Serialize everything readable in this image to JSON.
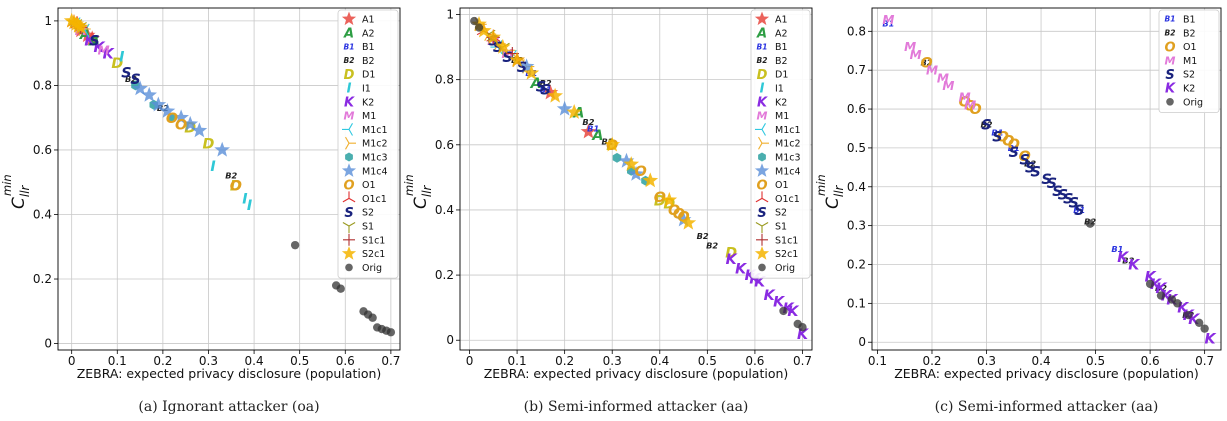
{
  "colors": {
    "A1": "#e8473e",
    "A2": "#2e9e44",
    "B1": "#2a33e0",
    "B2": "#222222",
    "D1": "#c9c020",
    "I1": "#2fc8d6",
    "K2": "#8a2be2",
    "M1": "#e27ad9",
    "M1c1": "#30c8e0",
    "M1c2": "#f0b030",
    "M1c3": "#2aa0a0",
    "M1c4": "#5a8fd8",
    "O1": "#e0a020",
    "O1c1": "#e03030",
    "S2": "#1a237e",
    "S1": "#9a9a20",
    "S1c1": "#b03030",
    "S2c1": "#f5b400",
    "Orig": "#555555"
  },
  "figures": [
    {
      "caption": "(a) Ignorant attacker (oa)",
      "xlabel": "ZEBRA: expected privacy disclosure (population)",
      "ylabel_main": "C",
      "ylabel_sub": "llr",
      "ylabel_sup": "min",
      "legend": [
        {
          "label": "A1",
          "icon": "star-icon"
        },
        {
          "label": "A2",
          "icon": "letter-a-icon"
        },
        {
          "label": "B1",
          "icon": "letter-b1-icon"
        },
        {
          "label": "B2",
          "icon": "letter-b2-icon"
        },
        {
          "label": "D1",
          "icon": "letter-d-icon"
        },
        {
          "label": "I1",
          "icon": "letter-i-icon"
        },
        {
          "label": "K2",
          "icon": "letter-k-icon"
        },
        {
          "label": "M1",
          "icon": "letter-m-icon"
        },
        {
          "label": "M1c1",
          "icon": "tri-left-icon"
        },
        {
          "label": "M1c2",
          "icon": "tri-right-icon"
        },
        {
          "label": "M1c3",
          "icon": "hexagon-icon"
        },
        {
          "label": "M1c4",
          "icon": "star-icon"
        },
        {
          "label": "O1",
          "icon": "letter-o-icon"
        },
        {
          "label": "O1c1",
          "icon": "tri-up-icon"
        },
        {
          "label": "S2",
          "icon": "letter-s-icon"
        },
        {
          "label": "S1",
          "icon": "tri-down-icon"
        },
        {
          "label": "S1c1",
          "icon": "plus-icon"
        },
        {
          "label": "S2c1",
          "icon": "star-icon"
        },
        {
          "label": "Orig",
          "icon": "dot-icon"
        }
      ]
    },
    {
      "caption": "(b) Semi-informed attacker (aa)",
      "xlabel": "ZEBRA: expected privacy disclosure (population)",
      "ylabel_main": "C",
      "ylabel_sub": "llr",
      "ylabel_sup": "min",
      "legend": [
        {
          "label": "A1",
          "icon": "star-icon"
        },
        {
          "label": "A2",
          "icon": "letter-a-icon"
        },
        {
          "label": "B1",
          "icon": "letter-b1-icon"
        },
        {
          "label": "B2",
          "icon": "letter-b2-icon"
        },
        {
          "label": "D1",
          "icon": "letter-d-icon"
        },
        {
          "label": "I1",
          "icon": "letter-i-icon"
        },
        {
          "label": "K2",
          "icon": "letter-k-icon"
        },
        {
          "label": "M1",
          "icon": "letter-m-icon"
        },
        {
          "label": "M1c1",
          "icon": "tri-left-icon"
        },
        {
          "label": "M1c2",
          "icon": "tri-right-icon"
        },
        {
          "label": "M1c3",
          "icon": "hexagon-icon"
        },
        {
          "label": "M1c4",
          "icon": "star-icon"
        },
        {
          "label": "O1",
          "icon": "letter-o-icon"
        },
        {
          "label": "O1c1",
          "icon": "tri-up-icon"
        },
        {
          "label": "S2",
          "icon": "letter-s-icon"
        },
        {
          "label": "S1",
          "icon": "tri-down-icon"
        },
        {
          "label": "S1c1",
          "icon": "plus-icon"
        },
        {
          "label": "S2c1",
          "icon": "star-icon"
        },
        {
          "label": "Orig",
          "icon": "dot-icon"
        }
      ]
    },
    {
      "caption": "(c) Semi-informed attacker (aa)",
      "xlabel": "ZEBRA: expected privacy disclosure (population)",
      "ylabel_main": "C",
      "ylabel_sub": "llr",
      "ylabel_sup": "min",
      "legend": [
        {
          "label": "B1",
          "icon": "letter-b1-icon"
        },
        {
          "label": "B2",
          "icon": "letter-b2-icon"
        },
        {
          "label": "O1",
          "icon": "letter-o-icon"
        },
        {
          "label": "M1",
          "icon": "letter-m-icon"
        },
        {
          "label": "S2",
          "icon": "letter-s-icon"
        },
        {
          "label": "K2",
          "icon": "letter-k-icon"
        },
        {
          "label": "Orig",
          "icon": "dot-icon"
        }
      ]
    }
  ],
  "chart_data": [
    {
      "type": "scatter",
      "title": "(a) Ignorant attacker (oa)",
      "xlabel": "ZEBRA: expected privacy disclosure (population)",
      "ylabel": "C_llr^min",
      "xlim": [
        -0.03,
        0.72
      ],
      "ylim": [
        -0.02,
        1.04
      ],
      "xticks": [
        0.0,
        0.1,
        0.2,
        0.3,
        0.4,
        0.5,
        0.6,
        0.7
      ],
      "yticks": [
        0.0,
        0.2,
        0.4,
        0.6,
        0.8,
        1.0
      ],
      "grid": true,
      "legend_position": "right",
      "series": [
        {
          "name": "A1",
          "x": [
            0.02,
            0.035,
            0.045
          ],
          "y": [
            0.97,
            0.955,
            0.945
          ]
        },
        {
          "name": "A2",
          "x": [
            0.03,
            0.05
          ],
          "y": [
            0.96,
            0.94
          ]
        },
        {
          "name": "B1",
          "x": [
            0.01,
            0.02
          ],
          "y": [
            0.99,
            0.98
          ]
        },
        {
          "name": "B2",
          "x": [
            0.13,
            0.2,
            0.35
          ],
          "y": [
            0.82,
            0.73,
            0.52
          ]
        },
        {
          "name": "D1",
          "x": [
            0.1,
            0.26,
            0.3,
            0.36
          ],
          "y": [
            0.87,
            0.67,
            0.62,
            0.49
          ]
        },
        {
          "name": "I1",
          "x": [
            0.11,
            0.31,
            0.38,
            0.39
          ],
          "y": [
            0.89,
            0.55,
            0.45,
            0.43
          ]
        },
        {
          "name": "K2",
          "x": [
            0.04,
            0.06,
            0.08
          ],
          "y": [
            0.94,
            0.92,
            0.9
          ]
        },
        {
          "name": "M1",
          "x": [
            0.02,
            0.07
          ],
          "y": [
            0.97,
            0.91
          ]
        },
        {
          "name": "M1c1",
          "x": [
            0.01,
            0.03
          ],
          "y": [
            0.99,
            0.97
          ]
        },
        {
          "name": "M1c2",
          "x": [
            0.015,
            0.025
          ],
          "y": [
            0.985,
            0.975
          ]
        },
        {
          "name": "M1c3",
          "x": [
            0.14,
            0.18,
            0.22
          ],
          "y": [
            0.8,
            0.74,
            0.7
          ]
        },
        {
          "name": "M1c4",
          "x": [
            0.15,
            0.17,
            0.19,
            0.21,
            0.24,
            0.26,
            0.28,
            0.33
          ],
          "y": [
            0.79,
            0.77,
            0.74,
            0.72,
            0.7,
            0.68,
            0.66,
            0.6
          ]
        },
        {
          "name": "O1",
          "x": [
            0.22,
            0.24,
            0.36
          ],
          "y": [
            0.7,
            0.68,
            0.49
          ]
        },
        {
          "name": "O1c1",
          "x": [
            0.005,
            0.012
          ],
          "y": [
            0.995,
            0.99
          ]
        },
        {
          "name": "S2",
          "x": [
            0.05,
            0.12,
            0.14
          ],
          "y": [
            0.94,
            0.84,
            0.82
          ]
        },
        {
          "name": "S1",
          "x": [
            0.008,
            0.018
          ],
          "y": [
            0.992,
            0.983
          ]
        },
        {
          "name": "S1c1",
          "x": [
            0.01,
            0.02
          ],
          "y": [
            0.99,
            0.98
          ]
        },
        {
          "name": "S2c1",
          "x": [
            0.0,
            0.005,
            0.01,
            0.015,
            0.02
          ],
          "y": [
            1.0,
            0.995,
            0.99,
            0.985,
            0.98
          ]
        },
        {
          "name": "Orig",
          "x": [
            0.49,
            0.58,
            0.59,
            0.64,
            0.65,
            0.66,
            0.67,
            0.68,
            0.69,
            0.7
          ],
          "y": [
            0.305,
            0.18,
            0.17,
            0.1,
            0.09,
            0.08,
            0.05,
            0.045,
            0.04,
            0.035
          ]
        }
      ]
    },
    {
      "type": "scatter",
      "title": "(b) Semi-informed attacker (aa)",
      "xlabel": "ZEBRA: expected privacy disclosure (population)",
      "ylabel": "C_llr^min",
      "xlim": [
        -0.02,
        0.72
      ],
      "ylim": [
        -0.03,
        1.02
      ],
      "xticks": [
        0.0,
        0.1,
        0.2,
        0.3,
        0.4,
        0.5,
        0.6,
        0.7
      ],
      "yticks": [
        0.0,
        0.2,
        0.4,
        0.6,
        0.8,
        1.0
      ],
      "grid": true,
      "legend_position": "right",
      "series": [
        {
          "name": "A1",
          "x": [
            0.1,
            0.17,
            0.25
          ],
          "y": [
            0.86,
            0.76,
            0.64
          ]
        },
        {
          "name": "A2",
          "x": [
            0.14,
            0.23,
            0.27
          ],
          "y": [
            0.79,
            0.7,
            0.63
          ]
        },
        {
          "name": "B1",
          "x": [
            0.13,
            0.16,
            0.26
          ],
          "y": [
            0.82,
            0.77,
            0.65
          ]
        },
        {
          "name": "B2",
          "x": [
            0.1,
            0.16,
            0.25,
            0.29,
            0.49,
            0.51
          ],
          "y": [
            0.86,
            0.79,
            0.67,
            0.61,
            0.32,
            0.29
          ]
        },
        {
          "name": "D1",
          "x": [
            0.3,
            0.4,
            0.42,
            0.55
          ],
          "y": [
            0.6,
            0.43,
            0.42,
            0.27
          ]
        },
        {
          "name": "K2",
          "x": [
            0.55,
            0.57,
            0.59,
            0.6,
            0.61,
            0.63,
            0.65,
            0.67,
            0.68,
            0.7
          ],
          "y": [
            0.25,
            0.22,
            0.2,
            0.19,
            0.18,
            0.14,
            0.12,
            0.1,
            0.09,
            0.02
          ]
        },
        {
          "name": "M1",
          "x": [
            0.05,
            0.08
          ],
          "y": [
            0.92,
            0.88
          ]
        },
        {
          "name": "M1c1",
          "x": [
            0.06,
            0.09
          ],
          "y": [
            0.9,
            0.87
          ]
        },
        {
          "name": "M1c2",
          "x": [
            0.02,
            0.04,
            0.06,
            0.08,
            0.1,
            0.12
          ],
          "y": [
            0.97,
            0.94,
            0.91,
            0.89,
            0.86,
            0.84
          ]
        },
        {
          "name": "M1c3",
          "x": [
            0.31,
            0.34,
            0.37
          ],
          "y": [
            0.56,
            0.52,
            0.49
          ]
        },
        {
          "name": "M1c4",
          "x": [
            0.12,
            0.2,
            0.33,
            0.35,
            0.45
          ],
          "y": [
            0.84,
            0.71,
            0.55,
            0.51,
            0.37
          ]
        },
        {
          "name": "O1",
          "x": [
            0.3,
            0.36,
            0.4,
            0.43,
            0.44,
            0.45
          ],
          "y": [
            0.6,
            0.52,
            0.44,
            0.4,
            0.39,
            0.38
          ]
        },
        {
          "name": "O1c1",
          "x": [
            0.03,
            0.05
          ],
          "y": [
            0.95,
            0.93
          ]
        },
        {
          "name": "S2",
          "x": [
            0.05,
            0.06,
            0.08,
            0.11,
            0.15,
            0.16
          ],
          "y": [
            0.92,
            0.9,
            0.87,
            0.84,
            0.78,
            0.77
          ]
        },
        {
          "name": "S1",
          "x": [
            0.04,
            0.07
          ],
          "y": [
            0.94,
            0.9
          ]
        },
        {
          "name": "S1c1",
          "x": [
            0.05,
            0.09
          ],
          "y": [
            0.93,
            0.88
          ]
        },
        {
          "name": "S2c1",
          "x": [
            0.02,
            0.03,
            0.05,
            0.07,
            0.1,
            0.13,
            0.18,
            0.22,
            0.3,
            0.34,
            0.38,
            0.42,
            0.46
          ],
          "y": [
            0.97,
            0.95,
            0.93,
            0.9,
            0.86,
            0.82,
            0.75,
            0.7,
            0.6,
            0.54,
            0.49,
            0.43,
            0.36
          ]
        },
        {
          "name": "Orig",
          "x": [
            0.01,
            0.02,
            0.66,
            0.69,
            0.7
          ],
          "y": [
            0.98,
            0.96,
            0.09,
            0.05,
            0.04
          ]
        }
      ]
    },
    {
      "type": "scatter",
      "title": "(c) Semi-informed attacker (aa)",
      "xlabel": "ZEBRA: expected privacy disclosure (population)",
      "ylabel": "C_llr^min",
      "xlim": [
        0.09,
        0.73
      ],
      "ylim": [
        -0.02,
        0.86
      ],
      "xticks": [
        0.1,
        0.2,
        0.3,
        0.4,
        0.5,
        0.6,
        0.7
      ],
      "yticks": [
        0.0,
        0.1,
        0.2,
        0.3,
        0.4,
        0.5,
        0.6,
        0.7,
        0.8
      ],
      "grid": true,
      "legend_position": "top-right",
      "series": [
        {
          "name": "B1",
          "x": [
            0.12,
            0.32,
            0.35,
            0.47,
            0.54
          ],
          "y": [
            0.82,
            0.54,
            0.5,
            0.34,
            0.24
          ]
        },
        {
          "name": "B2",
          "x": [
            0.19,
            0.3,
            0.38,
            0.49,
            0.56,
            0.62,
            0.67
          ],
          "y": [
            0.72,
            0.56,
            0.46,
            0.31,
            0.21,
            0.14,
            0.07
          ]
        },
        {
          "name": "O1",
          "x": [
            0.19,
            0.26,
            0.27,
            0.28,
            0.33,
            0.34,
            0.35,
            0.37
          ],
          "y": [
            0.72,
            0.62,
            0.61,
            0.6,
            0.53,
            0.52,
            0.51,
            0.48
          ]
        },
        {
          "name": "M1",
          "x": [
            0.12,
            0.16,
            0.17,
            0.2,
            0.22,
            0.23,
            0.26,
            0.27
          ],
          "y": [
            0.83,
            0.76,
            0.74,
            0.7,
            0.68,
            0.66,
            0.63,
            0.61
          ]
        },
        {
          "name": "S2",
          "x": [
            0.3,
            0.32,
            0.35,
            0.37,
            0.38,
            0.39,
            0.41,
            0.42,
            0.43,
            0.44,
            0.45,
            0.46,
            0.47
          ],
          "y": [
            0.56,
            0.53,
            0.49,
            0.47,
            0.45,
            0.44,
            0.42,
            0.41,
            0.39,
            0.38,
            0.37,
            0.36,
            0.34
          ]
        },
        {
          "name": "K2",
          "x": [
            0.55,
            0.57,
            0.6,
            0.61,
            0.62,
            0.63,
            0.64,
            0.66,
            0.67,
            0.68,
            0.71
          ],
          "y": [
            0.22,
            0.2,
            0.17,
            0.15,
            0.14,
            0.12,
            0.11,
            0.09,
            0.07,
            0.06,
            0.01
          ]
        },
        {
          "name": "Orig",
          "x": [
            0.49,
            0.6,
            0.62,
            0.64,
            0.65,
            0.67,
            0.69,
            0.7
          ],
          "y": [
            0.305,
            0.15,
            0.12,
            0.11,
            0.1,
            0.07,
            0.05,
            0.035
          ]
        }
      ]
    }
  ]
}
